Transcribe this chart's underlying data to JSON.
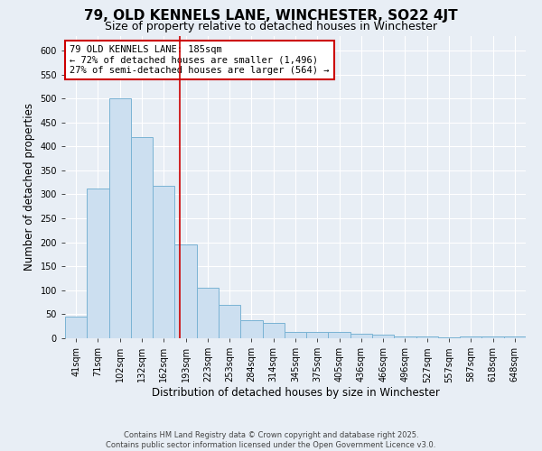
{
  "title": "79, OLD KENNELS LANE, WINCHESTER, SO22 4JT",
  "subtitle": "Size of property relative to detached houses in Winchester",
  "xlabel": "Distribution of detached houses by size in Winchester",
  "ylabel": "Number of detached properties",
  "categories": [
    "41sqm",
    "71sqm",
    "102sqm",
    "132sqm",
    "162sqm",
    "193sqm",
    "223sqm",
    "253sqm",
    "284sqm",
    "314sqm",
    "345sqm",
    "375sqm",
    "405sqm",
    "436sqm",
    "466sqm",
    "496sqm",
    "527sqm",
    "557sqm",
    "587sqm",
    "618sqm",
    "648sqm"
  ],
  "values": [
    45,
    312,
    500,
    420,
    318,
    195,
    105,
    70,
    37,
    32,
    14,
    13,
    14,
    10,
    8,
    4,
    3,
    1,
    4,
    3,
    4
  ],
  "bar_color": "#ccdff0",
  "bar_edge_color": "#7ab3d4",
  "background_color": "#e8eef5",
  "grid_color": "#ffffff",
  "annotation_text": "79 OLD KENNELS LANE: 185sqm\n← 72% of detached houses are smaller (1,496)\n27% of semi-detached houses are larger (564) →",
  "annotation_box_color": "#ffffff",
  "annotation_box_edge": "#cc0000",
  "red_line_color": "#cc0000",
  "footnote": "Contains HM Land Registry data © Crown copyright and database right 2025.\nContains public sector information licensed under the Open Government Licence v3.0.",
  "ylim": [
    0,
    630
  ],
  "yticks": [
    0,
    50,
    100,
    150,
    200,
    250,
    300,
    350,
    400,
    450,
    500,
    550,
    600
  ],
  "title_fontsize": 11,
  "subtitle_fontsize": 9,
  "tick_fontsize": 7,
  "axis_label_fontsize": 8.5
}
